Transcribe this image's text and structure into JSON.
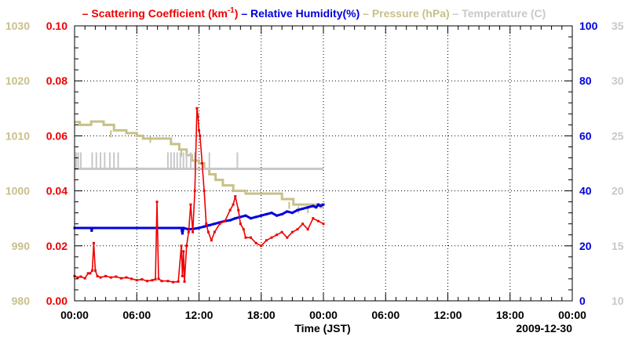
{
  "chart_data": {
    "type": "line",
    "title": "",
    "date": "2009-12-30",
    "xlabel": "Time (JST)",
    "x_unit": "hours",
    "xlim": [
      0,
      48
    ],
    "x_ticks": [
      0,
      6,
      12,
      18,
      24,
      30,
      36,
      42,
      48
    ],
    "x_tick_labels": [
      "00:00",
      "06:00",
      "12:00",
      "18:00",
      "00:00",
      "06:00",
      "12:00",
      "18:00",
      "00:00"
    ],
    "grid": true,
    "legend": {
      "placement": "top",
      "entries": [
        {
          "marker": "–",
          "label": "Scattering Coefficient (km",
          "superscript": "-1",
          "suffix": ")",
          "color": "#ee0000"
        },
        {
          "marker": "–",
          "label": "Relative Humidity(%)",
          "color": "#0000dd"
        },
        {
          "marker": "–",
          "label": "Pressure (hPa)",
          "color": "#c8c08a"
        },
        {
          "marker": "–",
          "label": "Temperature (C)",
          "color": "#c8c8c8"
        }
      ]
    },
    "axes": {
      "left_outer": {
        "name": "Pressure",
        "unit": "hPa",
        "ylim": [
          980,
          1030
        ],
        "ticks": [
          980,
          990,
          1000,
          1010,
          1020,
          1030
        ],
        "tick_labels": [
          "980",
          "990",
          "1000",
          "1010",
          "1020",
          "1030"
        ],
        "color": "#c8c08a"
      },
      "left_inner": {
        "name": "Scattering Coefficient",
        "unit": "km-1",
        "ylim": [
          0,
          0.1
        ],
        "ticks": [
          0,
          0.02,
          0.04,
          0.06,
          0.08,
          0.1
        ],
        "tick_labels": [
          "0.00",
          "0.02",
          "0.04",
          "0.06",
          "0.08",
          "0.10"
        ],
        "color": "#ee0000"
      },
      "right_inner": {
        "name": "Relative Humidity",
        "unit": "%",
        "ylim": [
          0,
          100
        ],
        "ticks": [
          0,
          20,
          40,
          60,
          80,
          100
        ],
        "tick_labels": [
          "0",
          "20",
          "40",
          "60",
          "80",
          "100"
        ],
        "color": "#0000dd"
      },
      "right_outer": {
        "name": "Temperature",
        "unit": "C",
        "ylim": [
          10,
          35
        ],
        "ticks": [
          10,
          15,
          20,
          25,
          30,
          35
        ],
        "tick_labels": [
          "10",
          "15",
          "20",
          "25",
          "30",
          "35"
        ],
        "color": "#c8c8c8"
      }
    },
    "series": [
      {
        "name": "Pressure (hPa)",
        "axis": "left_outer",
        "color": "#c8c08a",
        "style": "step",
        "x": [
          0,
          0.5,
          1.0,
          1.6,
          2.8,
          3.8,
          5.0,
          6.0,
          6.6,
          9.3,
          10.1,
          10.8,
          11.3,
          12.0,
          12.5,
          13.0,
          13.6,
          14.3,
          15.3,
          16.5,
          18.0,
          20.0,
          21.1,
          23.3,
          23.8,
          24.0
        ],
        "y": [
          1012.5,
          1012.0,
          1012.0,
          1012.6,
          1012.0,
          1011.0,
          1010.5,
          1010.0,
          1009.5,
          1008.5,
          1007.5,
          1006.5,
          1005.5,
          1005.0,
          1004.0,
          1003.0,
          1002.0,
          1001.0,
          1000.0,
          999.5,
          999.5,
          998.5,
          997.5,
          997.5,
          997.0,
          997.0
        ],
        "marks": [
          {
            "x": 3.5,
            "y": 1011.0
          },
          {
            "x": 7.3,
            "y": 1010.0
          },
          {
            "x": 10.3,
            "y": 1007.5
          },
          {
            "x": 20.7,
            "y": 998.0
          },
          {
            "x": 21.6,
            "y": 997.2
          },
          {
            "x": 22.5,
            "y": 997.2
          }
        ]
      },
      {
        "name": "Temperature (C)",
        "axis": "right_outer",
        "color": "#c8c8c8",
        "style": "flat-with-spikes",
        "x_start": 0,
        "x_end": 24,
        "baseline": 22.0,
        "spikes": [
          {
            "x": 0.15,
            "to": 23.5
          },
          {
            "x": 0.35,
            "to": 23.5
          },
          {
            "x": 0.6,
            "to": 23.5
          },
          {
            "x": 1.7,
            "to": 23.5
          },
          {
            "x": 2.1,
            "to": 23.5
          },
          {
            "x": 2.5,
            "to": 23.5
          },
          {
            "x": 2.9,
            "to": 23.5
          },
          {
            "x": 3.4,
            "to": 23.5
          },
          {
            "x": 3.8,
            "to": 23.5
          },
          {
            "x": 4.2,
            "to": 23.5
          },
          {
            "x": 9.0,
            "to": 23.5
          },
          {
            "x": 9.3,
            "to": 23.5
          },
          {
            "x": 9.6,
            "to": 23.5
          },
          {
            "x": 9.9,
            "to": 23.5
          },
          {
            "x": 10.2,
            "to": 23.5
          },
          {
            "x": 10.5,
            "to": 23.5
          },
          {
            "x": 10.8,
            "to": 23.5
          },
          {
            "x": 11.2,
            "to": 23.5
          },
          {
            "x": 11.6,
            "to": 23.5
          },
          {
            "x": 13.0,
            "to": 23.5
          },
          {
            "x": 15.7,
            "to": 23.5
          }
        ]
      },
      {
        "name": "Relative Humidity(%)",
        "axis": "right_inner",
        "color": "#0000dd",
        "style": "line-markers",
        "x": [
          0,
          1.0,
          1.6,
          1.65,
          1.7,
          2.0,
          4.0,
          6.0,
          8.0,
          9.0,
          10.0,
          10.3,
          10.4,
          10.5,
          11.0,
          11.5,
          12.0,
          12.5,
          13.0,
          13.5,
          14.0,
          14.5,
          15.0,
          15.5,
          16.0,
          16.5,
          17.0,
          17.5,
          18.0,
          18.5,
          19.0,
          19.5,
          20.0,
          20.5,
          21.0,
          21.5,
          22.0,
          22.5,
          23.0,
          23.3,
          23.5,
          23.7,
          24.0
        ],
        "y": [
          26.5,
          26.5,
          26.5,
          25.5,
          26.5,
          26.5,
          26.5,
          26.5,
          26.5,
          26.5,
          26.5,
          26.5,
          24.5,
          26.5,
          26.0,
          26.2,
          26.5,
          27.0,
          27.5,
          28.0,
          28.5,
          29.0,
          29.3,
          30.0,
          30.5,
          31.0,
          30.0,
          30.5,
          31.0,
          31.5,
          32.0,
          31.0,
          31.5,
          32.5,
          32.0,
          33.0,
          33.5,
          34.0,
          34.5,
          34.0,
          35.0,
          34.5,
          35.0
        ]
      },
      {
        "name": "Scattering Coefficient (km-1)",
        "axis": "left_inner",
        "color": "#ee0000",
        "style": "line-markers",
        "x": [
          0,
          0.3,
          0.6,
          1.0,
          1.3,
          1.5,
          1.7,
          1.85,
          2.0,
          2.2,
          2.5,
          3.0,
          3.5,
          4.0,
          4.5,
          5.0,
          5.5,
          6.0,
          6.5,
          7.0,
          7.5,
          7.8,
          7.95,
          8.1,
          8.4,
          9.0,
          9.5,
          10.0,
          10.3,
          10.4,
          10.5,
          10.6,
          10.8,
          11.0,
          11.2,
          11.4,
          11.6,
          11.8,
          11.9,
          12.0,
          12.1,
          12.3,
          12.5,
          12.7,
          12.9,
          13.2,
          13.5,
          14.0,
          14.5,
          15.0,
          15.3,
          15.5,
          15.8,
          16.0,
          16.3,
          16.5,
          17.0,
          17.5,
          18.0,
          18.5,
          19.0,
          19.5,
          20.0,
          20.5,
          21.0,
          21.5,
          22.0,
          22.5,
          23.0,
          23.5,
          24.0
        ],
        "y": [
          0.009,
          0.0085,
          0.0088,
          0.0082,
          0.01,
          0.01,
          0.011,
          0.021,
          0.011,
          0.009,
          0.0085,
          0.009,
          0.0085,
          0.0088,
          0.0082,
          0.0085,
          0.008,
          0.0075,
          0.0078,
          0.0072,
          0.0075,
          0.0078,
          0.036,
          0.008,
          0.0072,
          0.0072,
          0.0068,
          0.007,
          0.02,
          0.009,
          0.018,
          0.007,
          0.02,
          0.025,
          0.035,
          0.025,
          0.04,
          0.07,
          0.067,
          0.062,
          0.06,
          0.05,
          0.04,
          0.028,
          0.025,
          0.022,
          0.025,
          0.028,
          0.029,
          0.033,
          0.035,
          0.038,
          0.033,
          0.028,
          0.026,
          0.023,
          0.023,
          0.021,
          0.02,
          0.022,
          0.023,
          0.024,
          0.025,
          0.023,
          0.025,
          0.026,
          0.028,
          0.026,
          0.03,
          0.029,
          0.028
        ]
      }
    ]
  }
}
